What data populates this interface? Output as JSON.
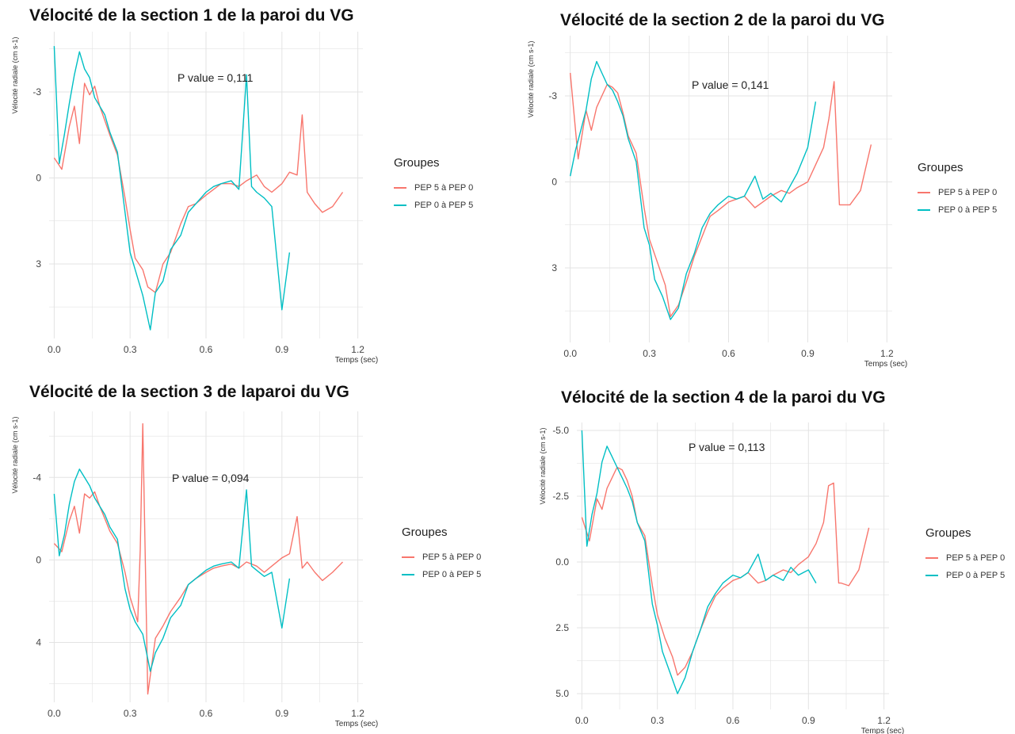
{
  "colors": {
    "series_red": "#F8766D",
    "series_teal": "#00BFC4",
    "grid": "#E3E3E3"
  },
  "legend": {
    "title": "Groupes",
    "items": [
      "PEP 5 à PEP 0",
      "PEP 0 à PEP 5"
    ]
  },
  "panels": [
    {
      "title": "Vélocité de la section 1 de la paroi du VG",
      "pvalue": "P value = 0,111",
      "xlabel": "Temps (sec)",
      "ylabel": "Vélocité radiale (cm s-1)",
      "xticks": [
        "0.0",
        "0.3",
        "0.6",
        "0.9",
        "1.2"
      ],
      "yticks": [
        "3",
        "0",
        "-3"
      ]
    },
    {
      "title": "Vélocité de la section 2 de la paroi du VG",
      "pvalue": "P value = 0,141",
      "xlabel": "Temps (sec)",
      "ylabel": "Vélocité radiale (cm s-1)",
      "xticks": [
        "0.0",
        "0.3",
        "0.6",
        "0.9",
        "1.2"
      ],
      "yticks": [
        "3",
        "0",
        "-3"
      ]
    },
    {
      "title": "Vélocité de la section 3 de laparoi du VG",
      "pvalue": "P value = 0,094",
      "xlabel": "Temps (sec)",
      "ylabel": "Vélocité radiale (cm s-1)",
      "xticks": [
        "0.0",
        "0.3",
        "0.6",
        "0.9",
        "1.2"
      ],
      "yticks": [
        "4",
        "0",
        "-4"
      ]
    },
    {
      "title": "Vélocité de la section 4 de la paroi du VG",
      "pvalue": "P value = 0,113",
      "xlabel": "Temps (sec)",
      "ylabel": "Vélocité radiale (cm s-1)",
      "xticks": [
        "0.0",
        "0.3",
        "0.6",
        "0.9",
        "1.2"
      ],
      "yticks": [
        "5.0",
        "2.5",
        "0.0",
        "-2.5",
        "-5.0"
      ]
    }
  ],
  "chart_data": [
    {
      "type": "line",
      "title": "Vélocité de la section 1 de la paroi du VG",
      "xlabel": "Temps (sec)",
      "ylabel": "Vélocité radiale (cm s-1)",
      "xlim": [
        -0.02,
        1.22
      ],
      "ylim": [
        -5.6,
        5.1
      ],
      "xticks": [
        0,
        0.3,
        0.6,
        0.9,
        1.2
      ],
      "yticks": [
        -3,
        0,
        3
      ],
      "annotation": "P value = 0,111",
      "series": [
        {
          "name": "PEP 5 à PEP 0",
          "x": [
            0.0,
            0.03,
            0.06,
            0.08,
            0.1,
            0.12,
            0.14,
            0.16,
            0.18,
            0.2,
            0.22,
            0.25,
            0.28,
            0.3,
            0.32,
            0.35,
            0.37,
            0.4,
            0.43,
            0.46,
            0.5,
            0.53,
            0.56,
            0.6,
            0.63,
            0.66,
            0.7,
            0.73,
            0.76,
            0.8,
            0.83,
            0.86,
            0.9,
            0.93,
            0.96,
            0.98,
            1.0,
            1.03,
            1.06,
            1.1,
            1.14
          ],
          "y": [
            0.7,
            0.3,
            1.8,
            2.5,
            1.2,
            3.3,
            2.9,
            3.2,
            2.5,
            2.0,
            1.5,
            0.8,
            -0.7,
            -1.8,
            -2.8,
            -3.2,
            -3.8,
            -4.0,
            -3.0,
            -2.6,
            -1.6,
            -1.0,
            -0.9,
            -0.6,
            -0.4,
            -0.2,
            -0.2,
            -0.3,
            -0.1,
            0.1,
            -0.3,
            -0.5,
            -0.2,
            0.2,
            0.1,
            2.2,
            -0.5,
            -0.9,
            -1.2,
            -1.0,
            -0.5
          ]
        },
        {
          "name": "PEP 0 à PEP 5",
          "x": [
            0.0,
            0.02,
            0.04,
            0.06,
            0.08,
            0.1,
            0.12,
            0.14,
            0.16,
            0.18,
            0.2,
            0.22,
            0.25,
            0.28,
            0.3,
            0.32,
            0.35,
            0.38,
            0.4,
            0.43,
            0.46,
            0.5,
            0.53,
            0.56,
            0.6,
            0.63,
            0.66,
            0.7,
            0.73,
            0.76,
            0.78,
            0.8,
            0.83,
            0.86,
            0.9,
            0.93
          ],
          "y": [
            4.6,
            0.5,
            1.5,
            2.6,
            3.6,
            4.4,
            3.8,
            3.5,
            2.8,
            2.5,
            2.2,
            1.6,
            0.9,
            -1.2,
            -2.6,
            -3.2,
            -4.1,
            -5.3,
            -4.0,
            -3.6,
            -2.5,
            -2.0,
            -1.2,
            -0.9,
            -0.5,
            -0.3,
            -0.2,
            -0.1,
            -0.4,
            3.6,
            -0.3,
            -0.5,
            -0.7,
            -1.0,
            -4.6,
            -2.6
          ]
        }
      ]
    },
    {
      "type": "line",
      "title": "Vélocité de la section 2 de la paroi du VG",
      "xlabel": "Temps (sec)",
      "ylabel": "Vélocité radiale (cm s-1)",
      "xlim": [
        -0.02,
        1.22
      ],
      "ylim": [
        -5.6,
        5.1
      ],
      "xticks": [
        0,
        0.3,
        0.6,
        0.9,
        1.2
      ],
      "yticks": [
        -3,
        0,
        3
      ],
      "annotation": "P value = 0,141",
      "series": [
        {
          "name": "PEP 5 à PEP 0",
          "x": [
            0.0,
            0.03,
            0.06,
            0.08,
            0.1,
            0.12,
            0.14,
            0.16,
            0.18,
            0.2,
            0.22,
            0.25,
            0.28,
            0.3,
            0.33,
            0.36,
            0.38,
            0.41,
            0.44,
            0.47,
            0.5,
            0.53,
            0.56,
            0.6,
            0.63,
            0.66,
            0.7,
            0.73,
            0.76,
            0.8,
            0.83,
            0.86,
            0.9,
            0.93,
            0.96,
            0.98,
            1.0,
            1.02,
            1.03,
            1.06,
            1.1,
            1.14
          ],
          "y": [
            3.8,
            0.8,
            2.5,
            1.8,
            2.6,
            3.0,
            3.4,
            3.3,
            3.1,
            2.4,
            1.6,
            1.0,
            -0.9,
            -2.0,
            -2.8,
            -3.6,
            -4.7,
            -4.3,
            -3.5,
            -2.6,
            -1.9,
            -1.2,
            -1.0,
            -0.7,
            -0.6,
            -0.5,
            -0.9,
            -0.7,
            -0.5,
            -0.3,
            -0.4,
            -0.2,
            0.0,
            0.6,
            1.2,
            2.2,
            3.5,
            -0.8,
            -0.8,
            -0.8,
            -0.3,
            1.3
          ]
        },
        {
          "name": "PEP 0 à PEP 5",
          "x": [
            0.0,
            0.02,
            0.04,
            0.06,
            0.08,
            0.1,
            0.12,
            0.14,
            0.16,
            0.18,
            0.2,
            0.22,
            0.25,
            0.28,
            0.3,
            0.32,
            0.35,
            0.38,
            0.41,
            0.44,
            0.47,
            0.5,
            0.53,
            0.56,
            0.6,
            0.63,
            0.66,
            0.7,
            0.73,
            0.76,
            0.8,
            0.83,
            0.86,
            0.9,
            0.93
          ],
          "y": [
            0.2,
            1.1,
            1.8,
            2.5,
            3.6,
            4.2,
            3.8,
            3.4,
            3.2,
            2.8,
            2.3,
            1.5,
            0.7,
            -1.6,
            -2.2,
            -3.4,
            -4.0,
            -4.8,
            -4.4,
            -3.2,
            -2.5,
            -1.6,
            -1.1,
            -0.8,
            -0.5,
            -0.6,
            -0.5,
            0.2,
            -0.6,
            -0.4,
            -0.7,
            -0.2,
            0.3,
            1.2,
            2.8
          ]
        }
      ]
    },
    {
      "type": "line",
      "title": "Vélocité de la section 3 de laparoi du VG",
      "xlabel": "Temps (sec)",
      "ylabel": "Vélocité radiale (cm s-1)",
      "xlim": [
        -0.02,
        1.22
      ],
      "ylim": [
        -6.9,
        7.2
      ],
      "xticks": [
        0,
        0.3,
        0.6,
        0.9,
        1.2
      ],
      "yticks": [
        -4,
        0,
        4
      ],
      "annotation": "P value = 0,094",
      "series": [
        {
          "name": "PEP 5 à PEP 0",
          "x": [
            0.0,
            0.03,
            0.06,
            0.08,
            0.1,
            0.12,
            0.14,
            0.16,
            0.18,
            0.2,
            0.22,
            0.25,
            0.28,
            0.3,
            0.33,
            0.34,
            0.35,
            0.37,
            0.4,
            0.43,
            0.46,
            0.5,
            0.53,
            0.56,
            0.6,
            0.63,
            0.66,
            0.7,
            0.73,
            0.76,
            0.8,
            0.83,
            0.86,
            0.9,
            0.93,
            0.96,
            0.98,
            1.0,
            1.03,
            1.06,
            1.1,
            1.14
          ],
          "y": [
            0.8,
            0.4,
            1.9,
            2.6,
            1.3,
            3.2,
            3.0,
            3.3,
            2.6,
            2.0,
            1.4,
            0.8,
            -0.6,
            -1.8,
            -3.0,
            0.5,
            6.6,
            -6.5,
            -3.8,
            -3.2,
            -2.5,
            -1.8,
            -1.2,
            -0.9,
            -0.6,
            -0.4,
            -0.3,
            -0.2,
            -0.4,
            -0.1,
            -0.3,
            -0.6,
            -0.3,
            0.1,
            0.3,
            2.1,
            -0.4,
            -0.1,
            -0.6,
            -1.0,
            -0.6,
            -0.1
          ]
        },
        {
          "name": "PEP 0 à PEP 5",
          "x": [
            0.0,
            0.02,
            0.04,
            0.06,
            0.08,
            0.1,
            0.12,
            0.14,
            0.16,
            0.18,
            0.2,
            0.22,
            0.25,
            0.28,
            0.3,
            0.32,
            0.35,
            0.38,
            0.4,
            0.43,
            0.46,
            0.5,
            0.53,
            0.56,
            0.6,
            0.63,
            0.66,
            0.7,
            0.73,
            0.76,
            0.78,
            0.8,
            0.83,
            0.86,
            0.9,
            0.93
          ],
          "y": [
            3.2,
            0.2,
            1.2,
            2.7,
            3.8,
            4.4,
            4.0,
            3.6,
            3.0,
            2.6,
            2.2,
            1.6,
            1.0,
            -1.4,
            -2.4,
            -3.0,
            -3.6,
            -5.4,
            -4.5,
            -3.8,
            -2.8,
            -2.2,
            -1.2,
            -0.9,
            -0.5,
            -0.3,
            -0.2,
            -0.1,
            -0.4,
            3.4,
            -0.3,
            -0.5,
            -0.8,
            -0.6,
            -3.3,
            -0.9
          ]
        }
      ]
    },
    {
      "type": "line",
      "title": "Vélocité de la section 4 de la paroi du VG",
      "xlabel": "Temps (sec)",
      "ylabel": "Vélocité radiale (cm s-1)",
      "xlim": [
        -0.02,
        1.22
      ],
      "ylim": [
        -5.6,
        5.3
      ],
      "xticks": [
        0,
        0.3,
        0.6,
        0.9,
        1.2
      ],
      "yticks": [
        -5,
        -2.5,
        0,
        2.5,
        5
      ],
      "annotation": "P value = 0,113",
      "series": [
        {
          "name": "PEP 5 à PEP 0",
          "x": [
            0.0,
            0.03,
            0.06,
            0.08,
            0.1,
            0.12,
            0.14,
            0.16,
            0.18,
            0.2,
            0.22,
            0.25,
            0.28,
            0.3,
            0.33,
            0.36,
            0.38,
            0.41,
            0.44,
            0.47,
            0.5,
            0.53,
            0.56,
            0.6,
            0.63,
            0.66,
            0.7,
            0.73,
            0.76,
            0.8,
            0.83,
            0.86,
            0.9,
            0.93,
            0.96,
            0.98,
            1.0,
            1.02,
            1.03,
            1.06,
            1.1,
            1.14
          ],
          "y": [
            1.7,
            0.8,
            2.4,
            2.0,
            2.8,
            3.2,
            3.6,
            3.5,
            3.1,
            2.5,
            1.5,
            1.0,
            -0.9,
            -2.0,
            -2.9,
            -3.6,
            -4.3,
            -4.0,
            -3.4,
            -2.6,
            -1.9,
            -1.3,
            -1.0,
            -0.7,
            -0.6,
            -0.4,
            -0.8,
            -0.7,
            -0.5,
            -0.3,
            -0.4,
            -0.1,
            0.2,
            0.7,
            1.5,
            2.9,
            3.0,
            -0.8,
            -0.8,
            -0.9,
            -0.3,
            1.3
          ]
        },
        {
          "name": "PEP 0 à PEP 5",
          "x": [
            0.0,
            0.02,
            0.04,
            0.06,
            0.08,
            0.1,
            0.12,
            0.14,
            0.16,
            0.18,
            0.2,
            0.22,
            0.25,
            0.28,
            0.3,
            0.32,
            0.35,
            0.38,
            0.41,
            0.44,
            0.47,
            0.5,
            0.53,
            0.56,
            0.6,
            0.63,
            0.66,
            0.7,
            0.73,
            0.76,
            0.8,
            0.83,
            0.86,
            0.9,
            0.93
          ],
          "y": [
            5.0,
            0.6,
            1.8,
            2.6,
            3.8,
            4.4,
            4.0,
            3.6,
            3.2,
            2.8,
            2.3,
            1.5,
            0.8,
            -1.6,
            -2.4,
            -3.4,
            -4.2,
            -5.0,
            -4.4,
            -3.4,
            -2.6,
            -1.7,
            -1.2,
            -0.8,
            -0.5,
            -0.6,
            -0.4,
            0.3,
            -0.7,
            -0.5,
            -0.7,
            -0.2,
            -0.5,
            -0.3,
            -0.8
          ]
        }
      ]
    }
  ]
}
